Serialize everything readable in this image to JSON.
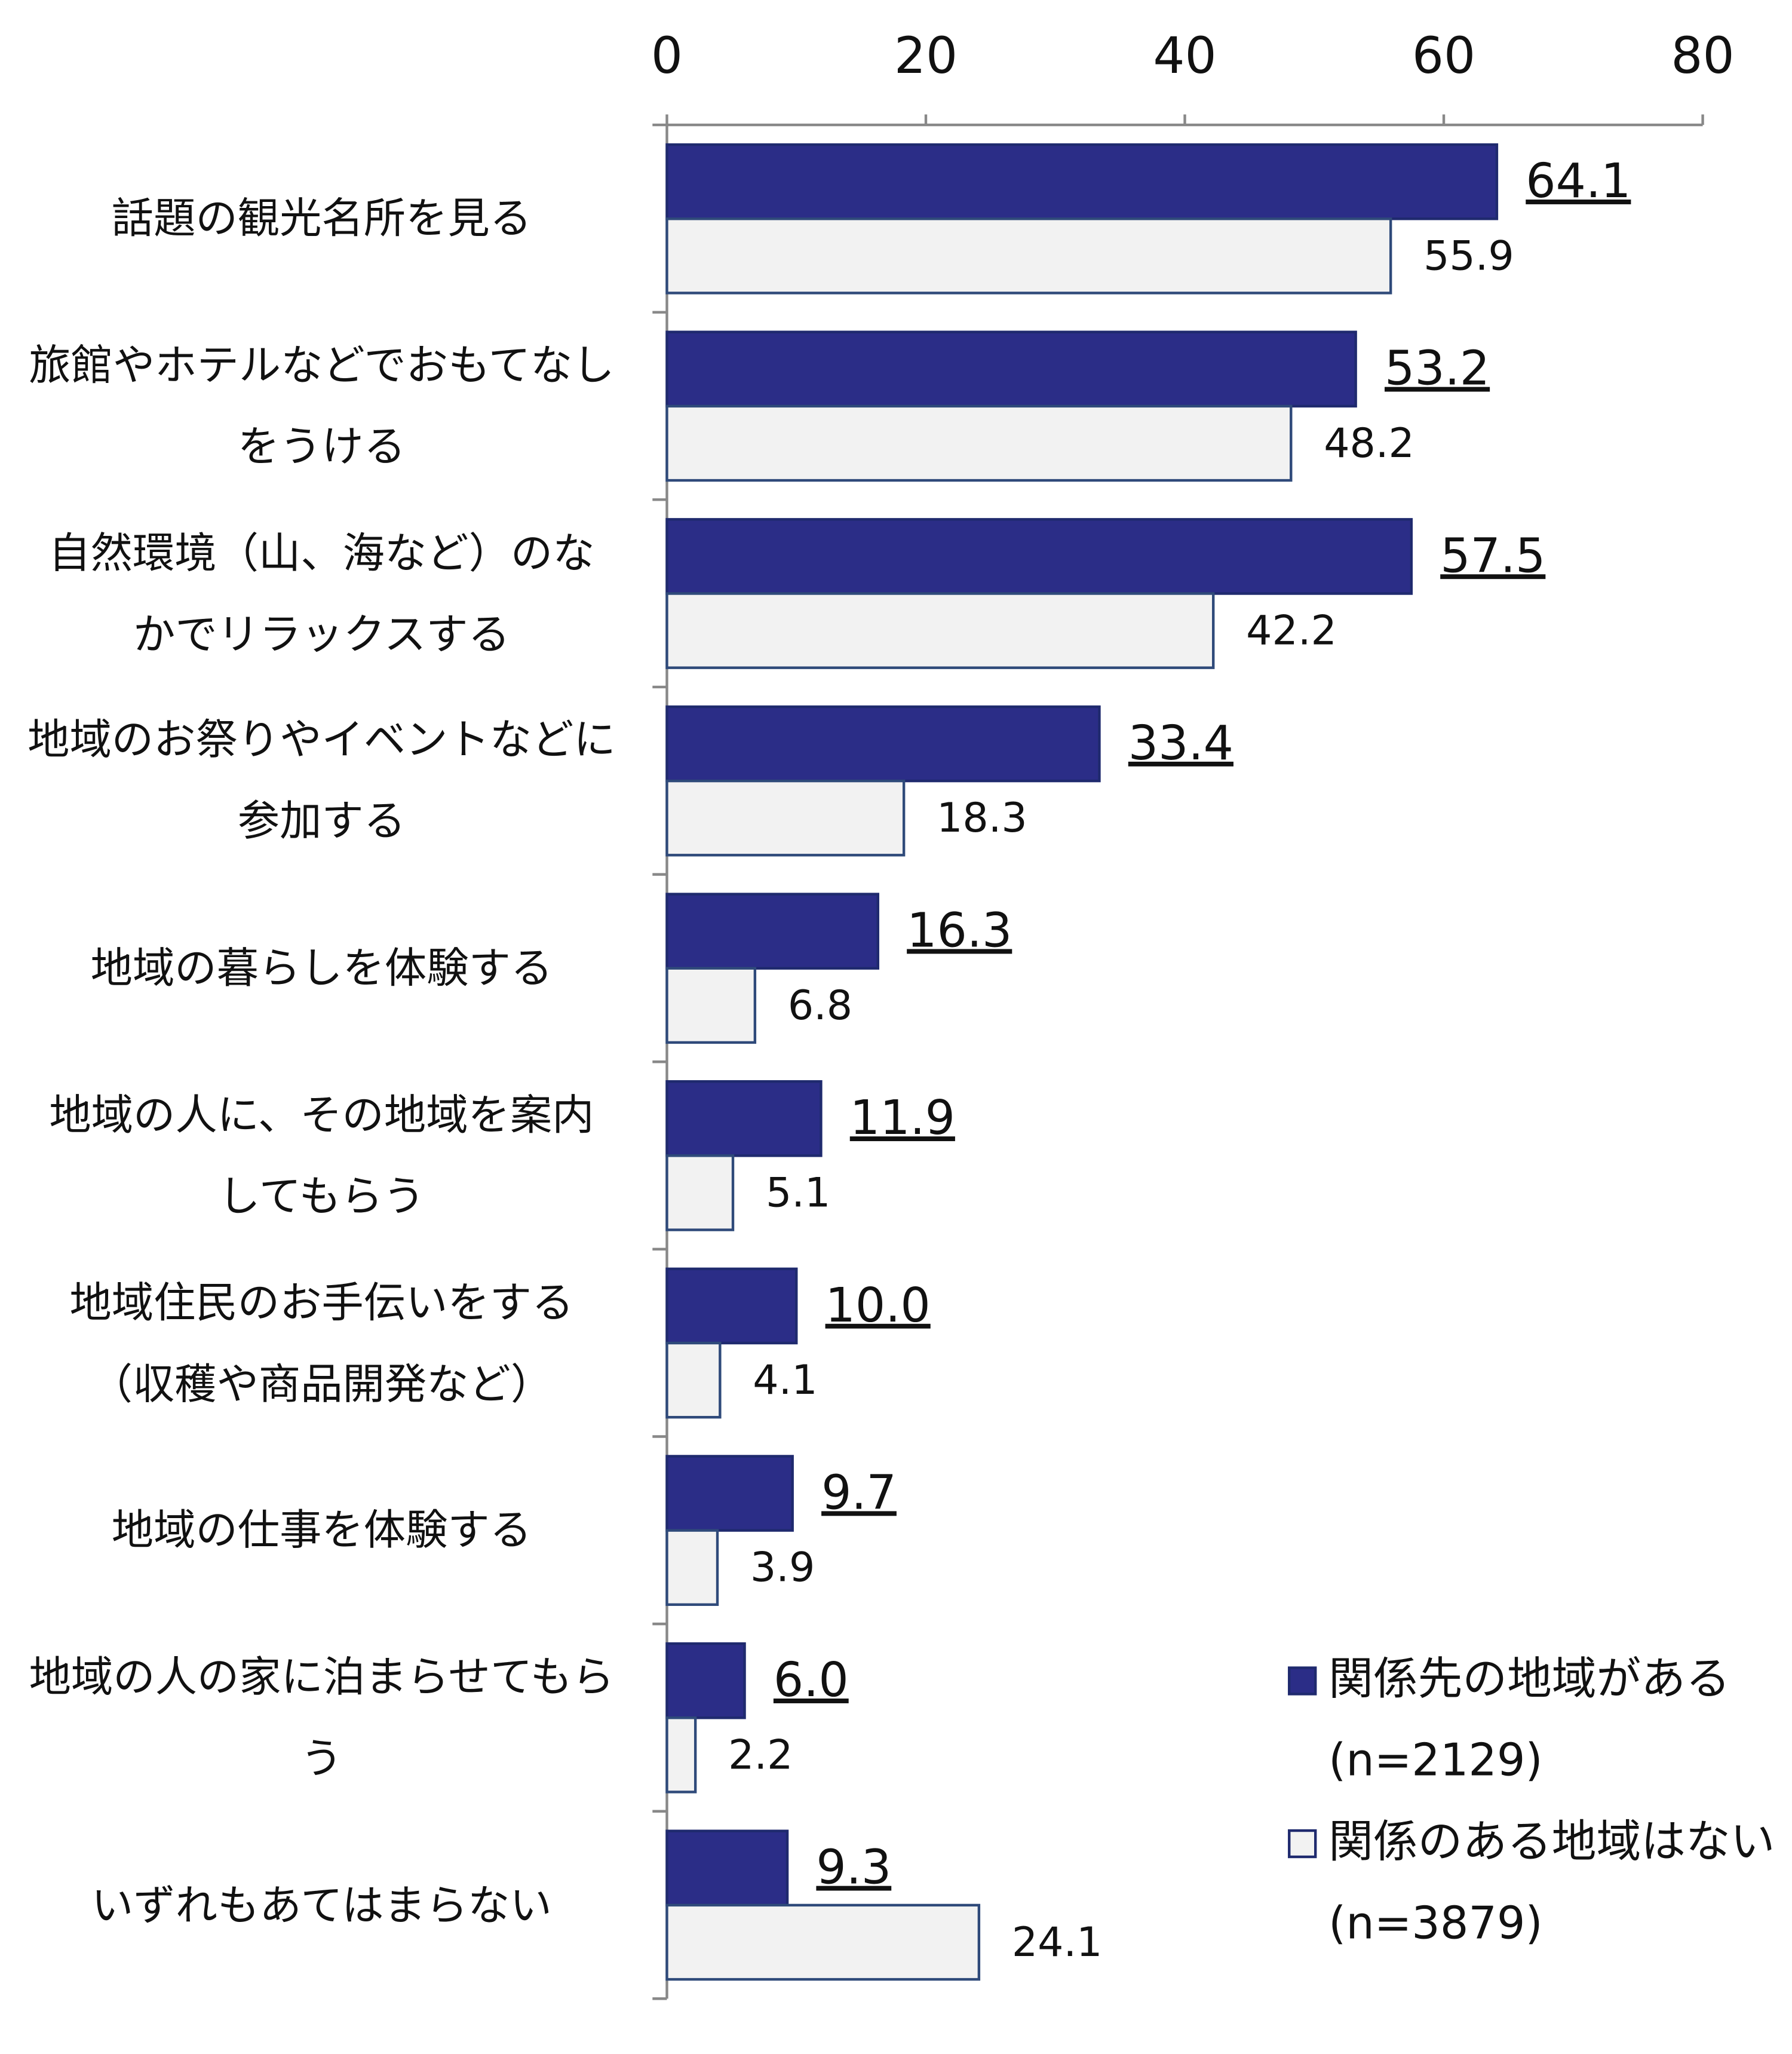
{
  "chart_data": {
    "type": "hbar",
    "categories": [
      "話題の観光名所を見る",
      "旅館やホテルなどでおもてなし\nをうける",
      "自然環境（山、海など）のな\nかでリラックスする",
      "地域のお祭りやイベントなどに\n参加する",
      "地域の暮らしを体験する",
      "地域の人に、その地域を案内\nしてもらう",
      "地域住民のお手伝いをする\n（収穫や商品開発など）",
      "地域の仕事を体験する",
      "地域の人の家に泊まらせてもら\nう",
      "いずれもあてはまらない"
    ],
    "series": [
      {
        "name": "関係先の地域がある\n(n=2129)",
        "color": "#2b2d87",
        "underline": true,
        "values": [
          64.1,
          53.2,
          57.5,
          33.4,
          16.3,
          11.9,
          10.0,
          9.7,
          6.0,
          9.3
        ],
        "value_labels": [
          "64.1",
          "53.2",
          "57.5",
          "33.4",
          "16.3",
          "11.9",
          "10.0",
          "9.7",
          "6.0",
          "9.3"
        ]
      },
      {
        "name": "関係のある地域はない\n(n=3879)",
        "color": "#f2f2f2",
        "underline": false,
        "values": [
          55.9,
          48.2,
          42.2,
          18.3,
          6.8,
          5.1,
          4.1,
          3.9,
          2.2,
          24.1
        ],
        "value_labels": [
          "55.9",
          "48.2",
          "42.2",
          "18.3",
          "6.8",
          "5.1",
          "4.1",
          "3.9",
          "2.2",
          "24.1"
        ]
      }
    ],
    "xlim": [
      0,
      80
    ],
    "xticks": [
      0,
      20,
      40,
      60,
      80
    ],
    "legend": "lower right"
  }
}
